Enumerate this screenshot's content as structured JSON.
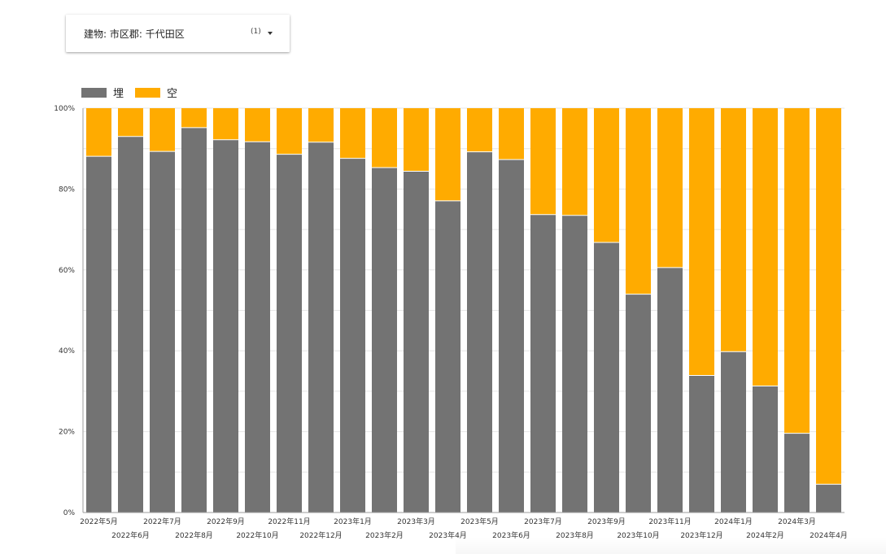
{
  "filter": {
    "label": "建物: 市区郡: 千代田区",
    "count": "(1)",
    "caret_icon": "caret-down-icon"
  },
  "colors": {
    "occupied": "#737373",
    "vacant": "#ffab00",
    "grid": "#e6e6e6",
    "axis": "#9e9e9e"
  },
  "chart_data": {
    "type": "bar",
    "stacked": true,
    "percent": true,
    "categories": [
      "2022年5月",
      "2022年6月",
      "2022年7月",
      "2022年8月",
      "2022年9月",
      "2022年10月",
      "2022年11月",
      "2022年12月",
      "2023年1月",
      "2023年2月",
      "2023年3月",
      "2023年4月",
      "2023年5月",
      "2023年6月",
      "2023年7月",
      "2023年8月",
      "2023年9月",
      "2023年10月",
      "2023年11月",
      "2023年12月",
      "2024年1月",
      "2024年2月",
      "2024年3月",
      "2024年4月"
    ],
    "series": [
      {
        "name": "埋",
        "color": "#737373",
        "values": [
          88.1,
          93.0,
          89.3,
          95.2,
          92.2,
          91.7,
          88.6,
          91.6,
          87.6,
          85.3,
          84.4,
          77.1,
          89.2,
          87.3,
          73.7,
          73.5,
          66.8,
          54.0,
          60.6,
          33.9,
          39.8,
          31.3,
          19.6,
          7.0
        ]
      },
      {
        "name": "空",
        "color": "#ffab00",
        "values": [
          11.9,
          7.0,
          10.7,
          4.8,
          7.8,
          8.3,
          11.4,
          8.4,
          12.4,
          14.7,
          15.6,
          22.9,
          10.8,
          12.7,
          26.3,
          26.5,
          33.2,
          46.0,
          39.4,
          66.1,
          60.2,
          68.7,
          80.4,
          93.0
        ]
      }
    ],
    "ylim": [
      0,
      100
    ],
    "yticks": [
      "0%",
      "20%",
      "40%",
      "60%",
      "80%",
      "100%"
    ],
    "grid": true,
    "legend_position": "top-left"
  }
}
